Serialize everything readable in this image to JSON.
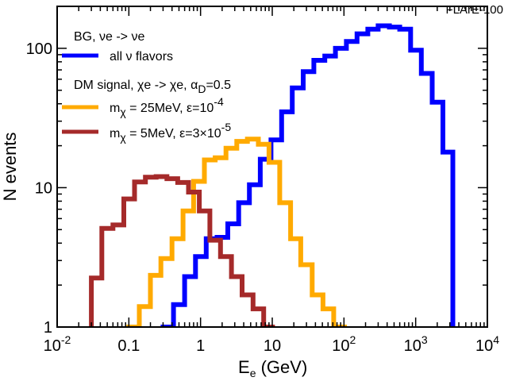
{
  "chart_data": {
    "type": "line",
    "step_histogram": true,
    "title": "FLArE-100",
    "xlabel": {
      "main": "E",
      "sub": "e",
      "rest": "  (GeV)"
    },
    "ylabel": "N events",
    "x_scale": "log",
    "y_scale": "log",
    "xlim": [
      0.01,
      10000
    ],
    "ylim": [
      1,
      200
    ],
    "x_ticks": [
      {
        "value": 0.01,
        "base": "10",
        "exp": "-2"
      },
      {
        "value": 0.1,
        "base": "0.1",
        "exp": ""
      },
      {
        "value": 1,
        "base": "1",
        "exp": ""
      },
      {
        "value": 10,
        "base": "10",
        "exp": ""
      },
      {
        "value": 100,
        "base": "10",
        "exp": "2"
      },
      {
        "value": 1000,
        "base": "10",
        "exp": "3"
      },
      {
        "value": 10000,
        "base": "10",
        "exp": "4"
      }
    ],
    "y_ticks": [
      {
        "value": 1,
        "label": "1"
      },
      {
        "value": 10,
        "label": "10"
      },
      {
        "value": 100,
        "label": "100"
      }
    ],
    "legend": {
      "position": "top-left",
      "bg_header": "BG, νe -> νe",
      "dm_header": {
        "main": "DM signal, χe -> χe, α",
        "sub": "D",
        "rest": "=0.5"
      }
    },
    "series": [
      {
        "name": "all ν flavors",
        "legend": {
          "main": "all ν flavors"
        },
        "color": "#0000ff",
        "bin_edges": [
          0.3,
          0.42,
          0.6,
          0.85,
          1.2,
          1.7,
          2.4,
          3.4,
          4.8,
          6.8,
          9.6,
          13.5,
          19,
          27,
          38,
          54,
          76,
          108,
          152,
          215,
          300,
          430,
          600,
          850,
          1200,
          1700,
          2400,
          3300
        ],
        "values": [
          1,
          1.45,
          2.3,
          3.2,
          4.3,
          4.4,
          5.5,
          7.8,
          10.5,
          16,
          22,
          35,
          52,
          68,
          82,
          88,
          100,
          112,
          127,
          137,
          145,
          142,
          137,
          97,
          66,
          41,
          18
        ]
      },
      {
        "name": "mχ = 25MeV, ε=10^-4",
        "legend": {
          "pre": "m",
          "sub": "χ",
          "mid": " = 25MeV, ε=10",
          "sup": "-4",
          "post": ""
        },
        "color": "#ffaa00",
        "bin_edges": [
          0.1,
          0.14,
          0.2,
          0.28,
          0.4,
          0.57,
          0.8,
          1.13,
          1.6,
          2.26,
          3.2,
          4.5,
          6.4,
          9,
          12.7,
          18,
          25,
          36,
          51,
          72,
          102
        ],
        "values": [
          1,
          1.4,
          2.35,
          3.1,
          4.3,
          6.8,
          11.1,
          15.8,
          16.4,
          19.2,
          21.5,
          22.3,
          20.5,
          15.2,
          7.8,
          4.3,
          2.8,
          1.7,
          1.35,
          1
        ]
      },
      {
        "name": "mχ = 5MeV, ε=3×10^-5",
        "legend": {
          "pre": "m",
          "sub": "χ",
          "mid": " = 5MeV, ε=3×10",
          "sup": "-5",
          "post": ""
        },
        "color": "#a52a2a",
        "bin_edges": [
          0.03,
          0.042,
          0.06,
          0.085,
          0.12,
          0.17,
          0.24,
          0.34,
          0.48,
          0.68,
          0.96,
          1.35,
          1.9,
          2.7,
          3.8,
          5.4,
          7.6,
          10.1
        ],
        "values": [
          2.25,
          5.1,
          5.4,
          8.3,
          11,
          11.9,
          12,
          11.6,
          10.9,
          9.3,
          6.8,
          4.2,
          3.2,
          2.3,
          1.7,
          1.35,
          1
        ]
      }
    ]
  }
}
